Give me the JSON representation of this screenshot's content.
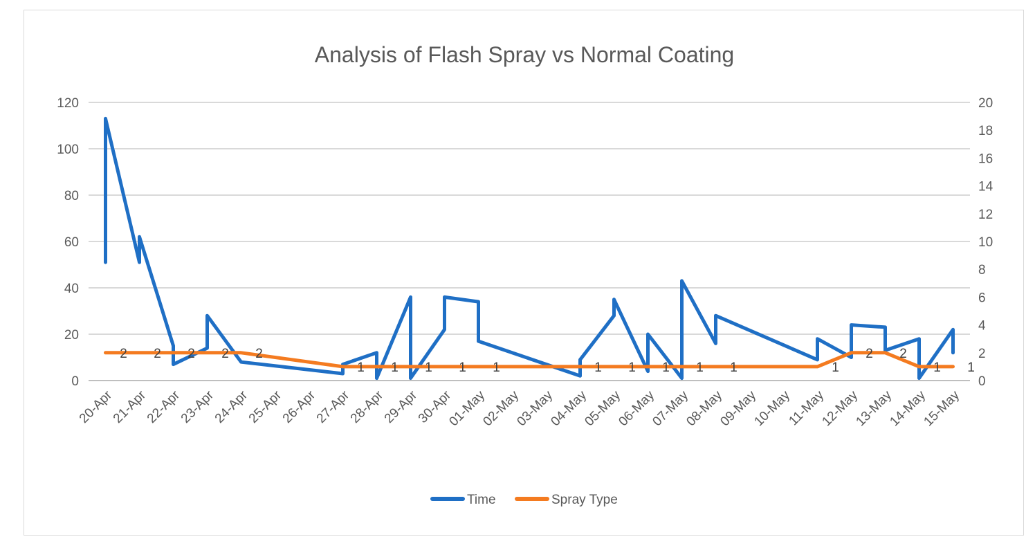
{
  "chart_data": {
    "type": "line",
    "title": "Analysis of Flash Spray vs Normal Coating",
    "xlabel": "",
    "ylabel": "",
    "categories": [
      "20-Apr",
      "21-Apr",
      "22-Apr",
      "23-Apr",
      "24-Apr",
      "25-Apr",
      "26-Apr",
      "27-Apr",
      "28-Apr",
      "29-Apr",
      "30-Apr",
      "01-May",
      "02-May",
      "03-May",
      "04-May",
      "05-May",
      "06-May",
      "07-May",
      "08-May",
      "09-May",
      "10-May",
      "11-May",
      "12-May",
      "13-May",
      "14-May",
      "15-May"
    ],
    "ylim": [
      0,
      120
    ],
    "y_ticks": [
      0,
      20,
      40,
      60,
      80,
      100,
      120
    ],
    "y2lim": [
      0,
      20
    ],
    "y2_ticks": [
      0,
      2,
      4,
      6,
      8,
      10,
      12,
      14,
      16,
      18,
      20
    ],
    "grid": true,
    "legend_position": "bottom",
    "series": [
      {
        "name": "Time",
        "axis": "left",
        "color": "#1f6fc5",
        "points": [
          {
            "x": "20-Apr",
            "y": 51
          },
          {
            "x": "20-Apr",
            "y": 113
          },
          {
            "x": "21-Apr",
            "y": 51
          },
          {
            "x": "21-Apr",
            "y": 62
          },
          {
            "x": "22-Apr",
            "y": 15
          },
          {
            "x": "22-Apr",
            "y": 7
          },
          {
            "x": "23-Apr",
            "y": 14
          },
          {
            "x": "23-Apr",
            "y": 28
          },
          {
            "x": "24-Apr",
            "y": 8
          },
          {
            "x": "27-Apr",
            "y": 3
          },
          {
            "x": "27-Apr",
            "y": 7
          },
          {
            "x": "28-Apr",
            "y": 12
          },
          {
            "x": "28-Apr",
            "y": 1
          },
          {
            "x": "29-Apr",
            "y": 36
          },
          {
            "x": "29-Apr",
            "y": 1
          },
          {
            "x": "30-Apr",
            "y": 22
          },
          {
            "x": "30-Apr",
            "y": 36
          },
          {
            "x": "01-May",
            "y": 34
          },
          {
            "x": "01-May",
            "y": 17
          },
          {
            "x": "04-May",
            "y": 2
          },
          {
            "x": "04-May",
            "y": 9
          },
          {
            "x": "05-May",
            "y": 28
          },
          {
            "x": "05-May",
            "y": 35
          },
          {
            "x": "06-May",
            "y": 4
          },
          {
            "x": "06-May",
            "y": 20
          },
          {
            "x": "07-May",
            "y": 1
          },
          {
            "x": "07-May",
            "y": 43
          },
          {
            "x": "08-May",
            "y": 16
          },
          {
            "x": "08-May",
            "y": 28
          },
          {
            "x": "11-May",
            "y": 9
          },
          {
            "x": "11-May",
            "y": 18
          },
          {
            "x": "12-May",
            "y": 10
          },
          {
            "x": "12-May",
            "y": 24
          },
          {
            "x": "13-May",
            "y": 23
          },
          {
            "x": "13-May",
            "y": 13
          },
          {
            "x": "14-May",
            "y": 18
          },
          {
            "x": "14-May",
            "y": 1
          },
          {
            "x": "15-May",
            "y": 22
          },
          {
            "x": "15-May",
            "y": 12
          }
        ]
      },
      {
        "name": "Spray Type",
        "axis": "right",
        "color": "#f47b20",
        "points": [
          {
            "x": "20-Apr",
            "y": 2
          },
          {
            "x": "21-Apr",
            "y": 2
          },
          {
            "x": "22-Apr",
            "y": 2
          },
          {
            "x": "23-Apr",
            "y": 2
          },
          {
            "x": "24-Apr",
            "y": 2
          },
          {
            "x": "27-Apr",
            "y": 1
          },
          {
            "x": "28-Apr",
            "y": 1
          },
          {
            "x": "29-Apr",
            "y": 1
          },
          {
            "x": "30-Apr",
            "y": 1
          },
          {
            "x": "01-May",
            "y": 1
          },
          {
            "x": "04-May",
            "y": 1
          },
          {
            "x": "05-May",
            "y": 1
          },
          {
            "x": "06-May",
            "y": 1
          },
          {
            "x": "07-May",
            "y": 1
          },
          {
            "x": "08-May",
            "y": 1
          },
          {
            "x": "11-May",
            "y": 1
          },
          {
            "x": "12-May",
            "y": 2
          },
          {
            "x": "13-May",
            "y": 2
          },
          {
            "x": "14-May",
            "y": 1
          },
          {
            "x": "15-May",
            "y": 1
          }
        ]
      }
    ],
    "data_labels": [
      {
        "x": "20-Apr",
        "text": "2"
      },
      {
        "x": "21-Apr",
        "text": "2"
      },
      {
        "x": "22-Apr",
        "text": "2"
      },
      {
        "x": "23-Apr",
        "text": "2"
      },
      {
        "x": "24-Apr",
        "text": "2"
      },
      {
        "x": "27-Apr",
        "text": "1"
      },
      {
        "x": "28-Apr",
        "text": "1"
      },
      {
        "x": "29-Apr",
        "text": "1"
      },
      {
        "x": "30-Apr",
        "text": "1"
      },
      {
        "x": "01-May",
        "text": "1"
      },
      {
        "x": "04-May",
        "text": "1"
      },
      {
        "x": "05-May",
        "text": "1"
      },
      {
        "x": "06-May",
        "text": "1"
      },
      {
        "x": "07-May",
        "text": "1"
      },
      {
        "x": "08-May",
        "text": "1"
      },
      {
        "x": "11-May",
        "text": "1"
      },
      {
        "x": "12-May",
        "text": "2"
      },
      {
        "x": "13-May",
        "text": "2"
      },
      {
        "x": "14-May",
        "text": "1"
      },
      {
        "x": "15-May",
        "text": "1"
      }
    ]
  }
}
